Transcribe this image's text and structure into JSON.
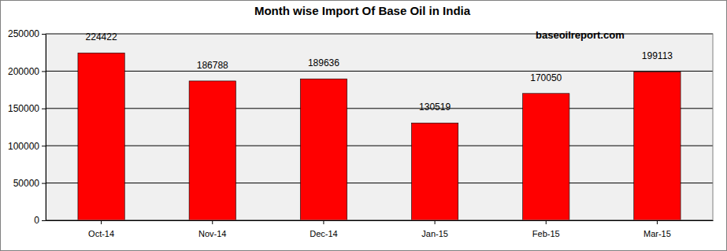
{
  "chart_data": {
    "type": "bar",
    "title": "Month wise Import Of Base Oil in India",
    "annotations": [
      "baseoilreport.com"
    ],
    "categories": [
      "Oct-14",
      "Nov-14",
      "Dec-14",
      "Jan-15",
      "Feb-15",
      "Mar-15"
    ],
    "values": [
      224422,
      186788,
      189636,
      130519,
      170050,
      199113
    ],
    "color": "#ff0000",
    "ylim": [
      0,
      250000
    ],
    "yticks": [
      0,
      50000,
      100000,
      150000,
      200000,
      250000
    ],
    "grid": true,
    "data_labels": true
  }
}
